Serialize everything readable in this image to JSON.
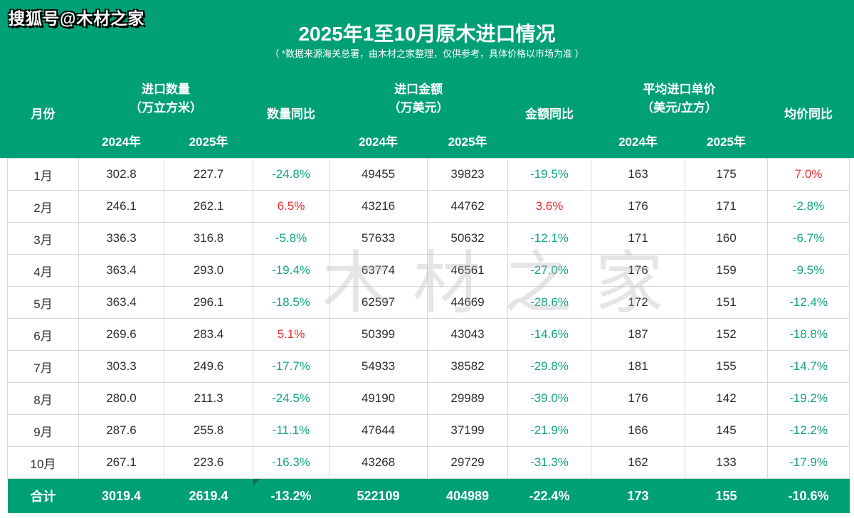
{
  "branding": {
    "logo": "搜狐号@木材之家",
    "watermark": "木材之家"
  },
  "header": {
    "title": "2025年1至10月原木进口情况",
    "subtitle": "（ *数据来源海关总署，由木材之家整理，仅供参考，具体价格以市场为准 ）"
  },
  "columns": {
    "month": "月份",
    "qty_group_line1": "进口数量",
    "qty_group_line2": "（万立方米）",
    "qty_yoy": "数量同比",
    "amt_group_line1": "进口金额",
    "amt_group_line2": "（万美元）",
    "amt_yoy": "金额同比",
    "price_group_line1": "平均进口单价",
    "price_group_line2": "（美元/立方）",
    "price_yoy": "均价同比",
    "year_2024": "2024年",
    "year_2025": "2025年"
  },
  "colors": {
    "banner_green": "#00a077",
    "total_row_green": "#00a077",
    "negative_text_green": "#13a583",
    "positive_text_red": "#ee2c2e",
    "grid_border": "#d9d9d9",
    "corner_marker_green": "#156b40"
  },
  "chart_data": {
    "type": "table",
    "title": "2025年1至10月原木进口情况",
    "columns": [
      "月份",
      "进口数量2024年（万立方米）",
      "进口数量2025年（万立方米）",
      "数量同比",
      "进口金额2024年（万美元）",
      "进口金额2025年（万美元）",
      "金额同比",
      "平均进口单价2024年（美元/立方）",
      "平均进口单价2025年（美元/立方）",
      "均价同比"
    ],
    "rows": [
      [
        "1月",
        "302.8",
        "227.7",
        "-24.8%",
        "49455",
        "39823",
        "-19.5%",
        "163",
        "175",
        "7.0%"
      ],
      [
        "2月",
        "246.1",
        "262.1",
        "6.5%",
        "43216",
        "44762",
        "3.6%",
        "176",
        "171",
        "-2.8%"
      ],
      [
        "3月",
        "336.3",
        "316.8",
        "-5.8%",
        "57633",
        "50632",
        "-12.1%",
        "171",
        "160",
        "-6.7%"
      ],
      [
        "4月",
        "363.4",
        "293.0",
        "-19.4%",
        "63774",
        "46561",
        "-27.0%",
        "176",
        "159",
        "-9.5%"
      ],
      [
        "5月",
        "363.4",
        "296.1",
        "-18.5%",
        "62597",
        "44669",
        "-28.6%",
        "172",
        "151",
        "-12.4%"
      ],
      [
        "6月",
        "269.6",
        "283.4",
        "5.1%",
        "50399",
        "43043",
        "-14.6%",
        "187",
        "152",
        "-18.8%"
      ],
      [
        "7月",
        "303.3",
        "249.6",
        "-17.7%",
        "54933",
        "38582",
        "-29.8%",
        "181",
        "155",
        "-14.7%"
      ],
      [
        "8月",
        "280.0",
        "211.3",
        "-24.5%",
        "49190",
        "29989",
        "-39.0%",
        "176",
        "142",
        "-19.2%"
      ],
      [
        "9月",
        "287.6",
        "255.8",
        "-11.1%",
        "47644",
        "37199",
        "-21.9%",
        "166",
        "145",
        "-12.2%"
      ],
      [
        "10月",
        "267.1",
        "223.6",
        "-16.3%",
        "43268",
        "29729",
        "-31.3%",
        "162",
        "133",
        "-17.9%"
      ]
    ],
    "total_row": [
      "合计",
      "3019.4",
      "2619.4",
      "-13.2%",
      "522109",
      "404989",
      "-22.4%",
      "173",
      "155",
      "-10.6%"
    ]
  }
}
